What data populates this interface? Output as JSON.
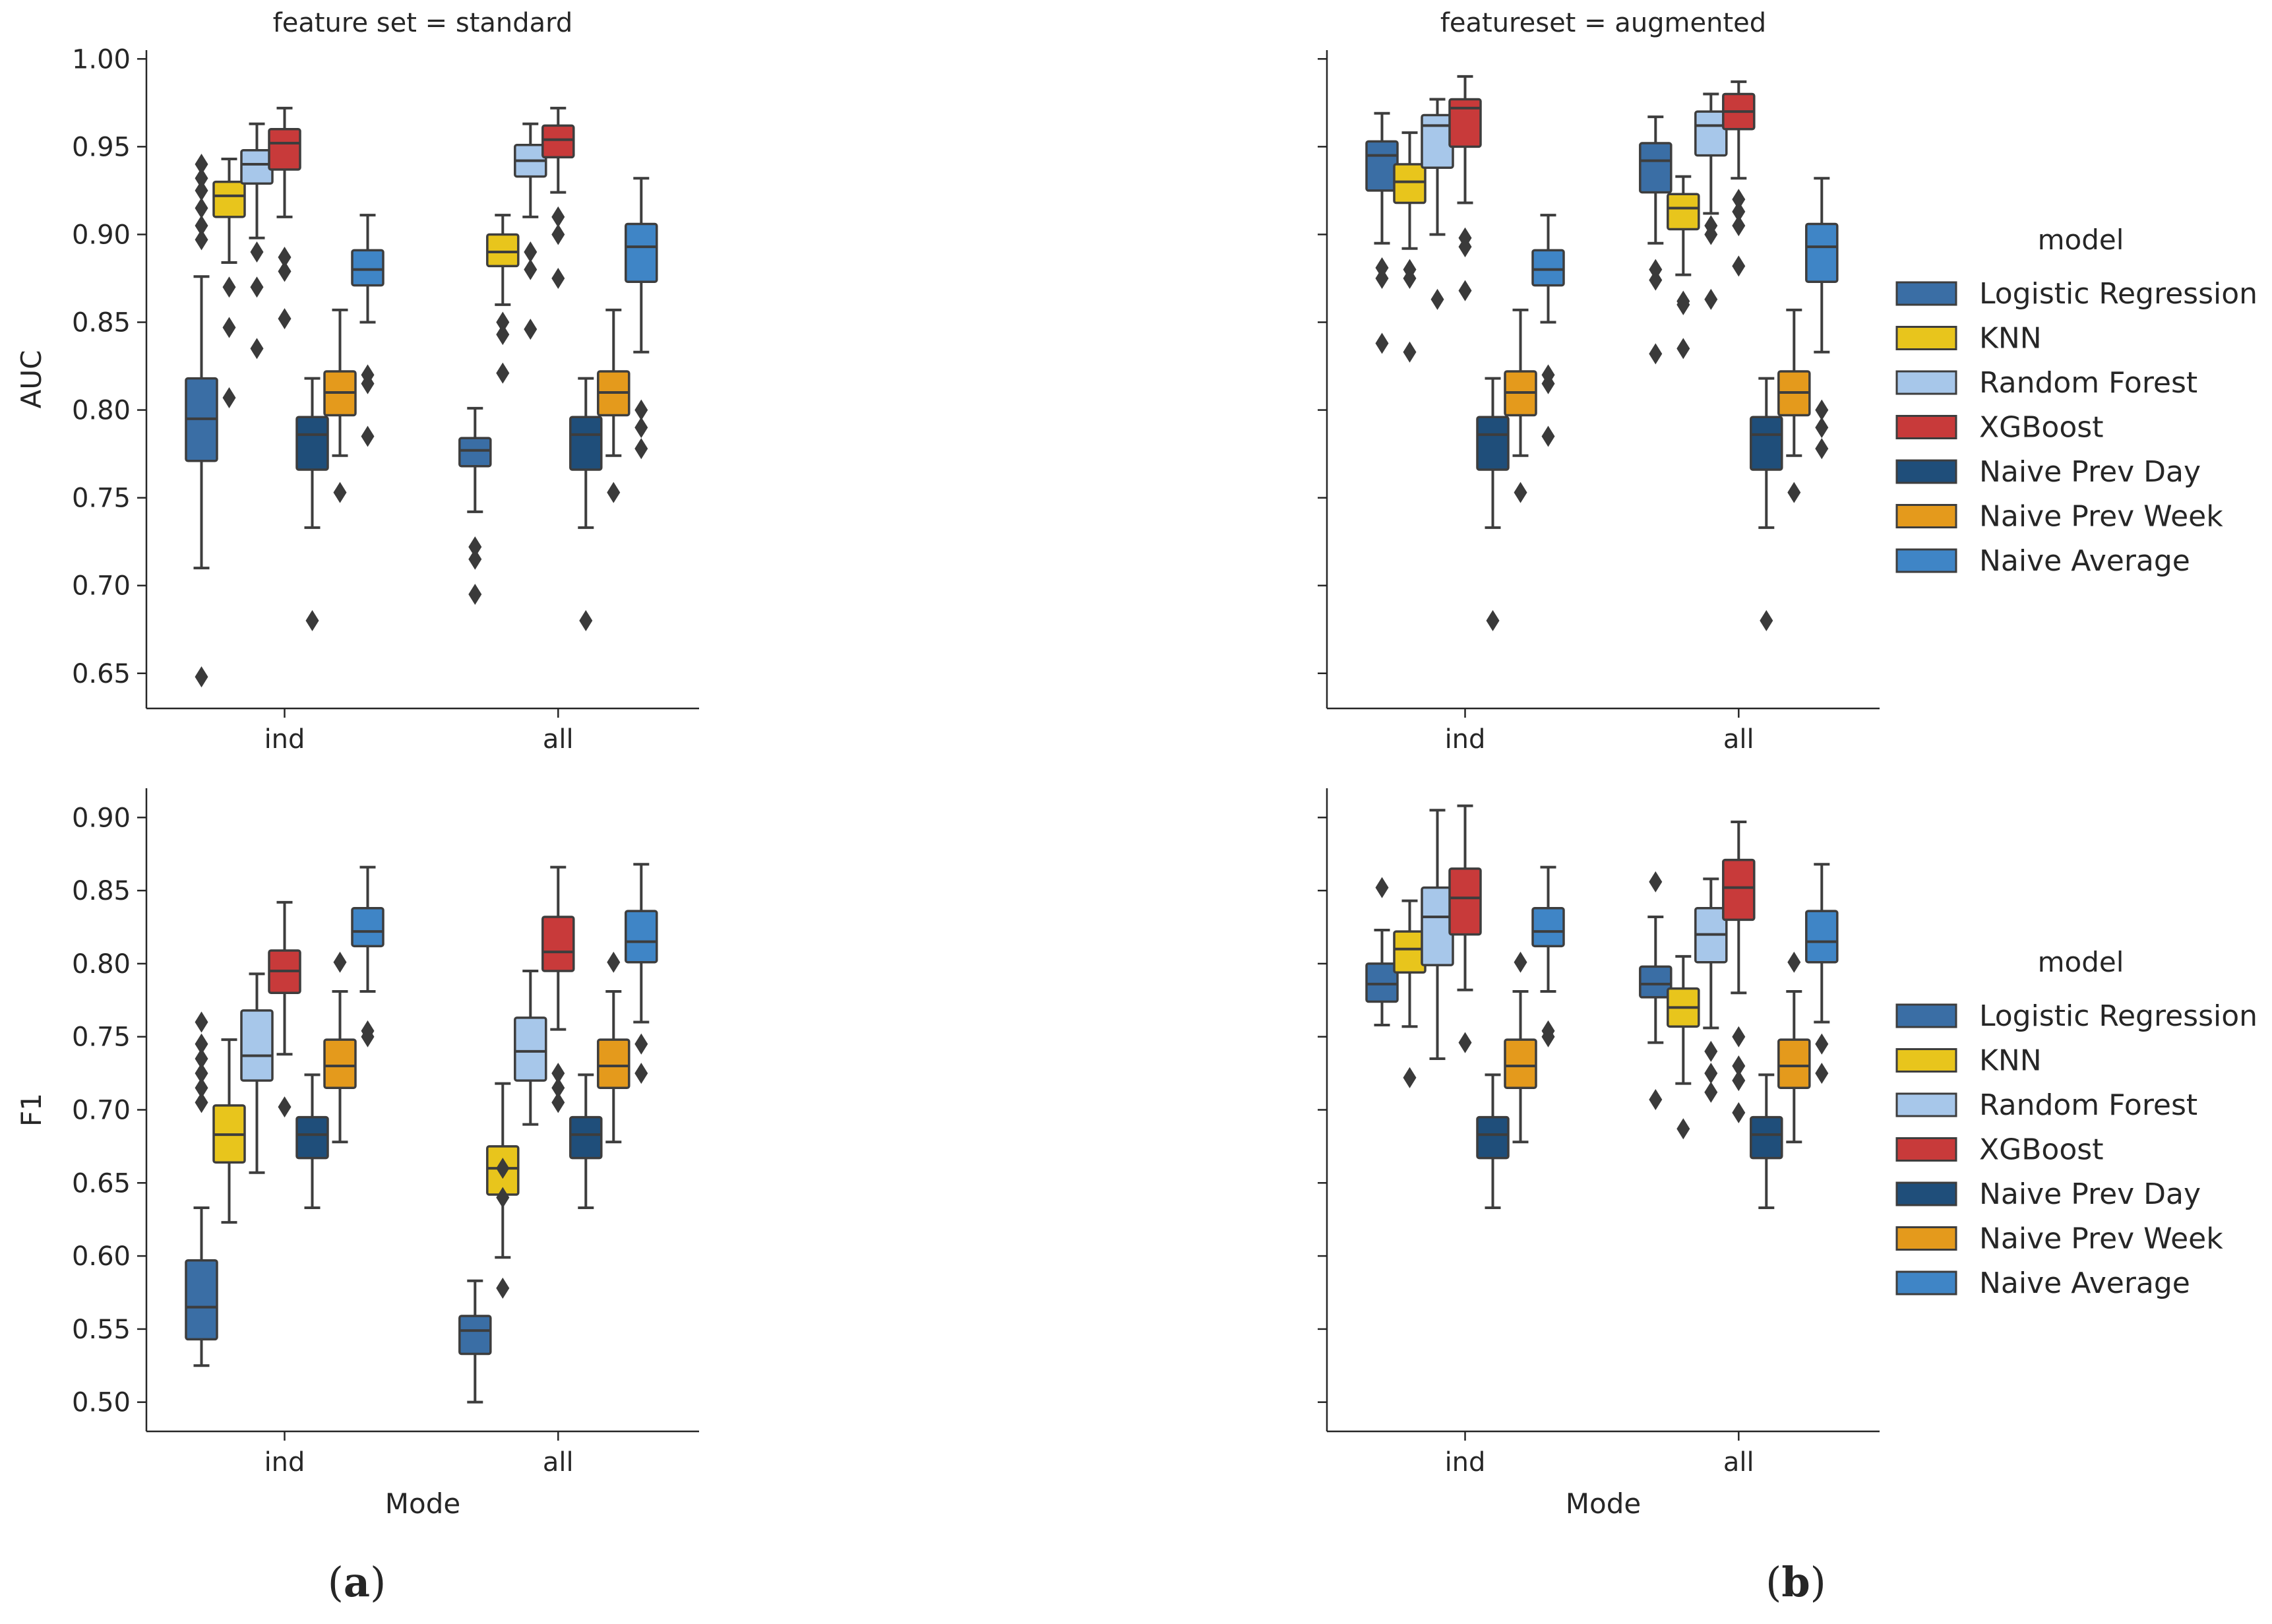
{
  "figure": {
    "panel_labels": [
      {
        "open": "(",
        "letter": "a",
        "close": ")"
      },
      {
        "open": "(",
        "letter": "b",
        "close": ")"
      }
    ]
  },
  "legends": [
    {
      "title": "model",
      "entries": [
        "Logistic Regression",
        "KNN",
        "Random Forest",
        "XGBoost",
        "Naive Prev Day",
        "Naive Prev Week",
        "Naive Average"
      ]
    },
    {
      "title": "model",
      "entries": [
        "Logistic Regression",
        "KNN",
        "Random Forest",
        "XGBoost",
        "Naive Prev Day",
        "Naive Prev Week",
        "Naive Average"
      ]
    }
  ],
  "colors": {
    "Logistic Regression": "#3a6ea5",
    "KNN": "#e8c51c",
    "Random Forest": "#a7c7ea",
    "XGBoost": "#c83a3a",
    "Naive Prev Day": "#1f4e7a",
    "Naive Prev Week": "#e49a1c",
    "Naive Average": "#3f85c6"
  },
  "chart_data": [
    {
      "type": "boxplot",
      "title": "feature set = standard",
      "xlabel": "",
      "ylabel": "AUC",
      "ylim": [
        0.63,
        1.005
      ],
      "yticks": [
        "0.65",
        "0.70",
        "0.75",
        "0.80",
        "0.85",
        "0.90",
        "0.95",
        "1.00"
      ],
      "categories": [
        "ind",
        "all"
      ],
      "groups": [
        {
          "mode": "ind",
          "boxes": [
            {
              "model": "Logistic Regression",
              "whislo": 0.71,
              "q1": 0.771,
              "med": 0.795,
              "q3": 0.818,
              "whishi": 0.876,
              "fliers": [
                0.648,
                0.897,
                0.905,
                0.915,
                0.925,
                0.932,
                0.94
              ]
            },
            {
              "model": "KNN",
              "whislo": 0.884,
              "q1": 0.91,
              "med": 0.922,
              "q3": 0.93,
              "whishi": 0.943,
              "fliers": [
                0.807,
                0.847,
                0.87
              ]
            },
            {
              "model": "Random Forest",
              "whislo": 0.898,
              "q1": 0.929,
              "med": 0.94,
              "q3": 0.948,
              "whishi": 0.963,
              "fliers": [
                0.835,
                0.87,
                0.89
              ]
            },
            {
              "model": "XGBoost",
              "whislo": 0.91,
              "q1": 0.937,
              "med": 0.952,
              "q3": 0.96,
              "whishi": 0.972,
              "fliers": [
                0.852,
                0.879,
                0.887
              ]
            },
            {
              "model": "Naive Prev Day",
              "whislo": 0.733,
              "q1": 0.766,
              "med": 0.786,
              "q3": 0.796,
              "whishi": 0.818,
              "fliers": [
                0.68
              ]
            },
            {
              "model": "Naive Prev Week",
              "whislo": 0.774,
              "q1": 0.797,
              "med": 0.81,
              "q3": 0.822,
              "whishi": 0.857,
              "fliers": [
                0.753
              ]
            },
            {
              "model": "Naive Average",
              "whislo": 0.85,
              "q1": 0.871,
              "med": 0.88,
              "q3": 0.891,
              "whishi": 0.911,
              "fliers": [
                0.785,
                0.815,
                0.82
              ]
            }
          ]
        },
        {
          "mode": "all",
          "boxes": [
            {
              "model": "Logistic Regression",
              "whislo": 0.742,
              "q1": 0.768,
              "med": 0.777,
              "q3": 0.784,
              "whishi": 0.801,
              "fliers": [
                0.695,
                0.715,
                0.722
              ]
            },
            {
              "model": "KNN",
              "whislo": 0.86,
              "q1": 0.882,
              "med": 0.89,
              "q3": 0.9,
              "whishi": 0.911,
              "fliers": [
                0.821,
                0.843,
                0.85
              ]
            },
            {
              "model": "Random Forest",
              "whislo": 0.91,
              "q1": 0.933,
              "med": 0.942,
              "q3": 0.951,
              "whishi": 0.963,
              "fliers": [
                0.846,
                0.88,
                0.89
              ]
            },
            {
              "model": "XGBoost",
              "whislo": 0.924,
              "q1": 0.944,
              "med": 0.954,
              "q3": 0.962,
              "whishi": 0.972,
              "fliers": [
                0.875,
                0.9,
                0.91
              ]
            },
            {
              "model": "Naive Prev Day",
              "whislo": 0.733,
              "q1": 0.766,
              "med": 0.786,
              "q3": 0.796,
              "whishi": 0.818,
              "fliers": [
                0.68
              ]
            },
            {
              "model": "Naive Prev Week",
              "whislo": 0.774,
              "q1": 0.797,
              "med": 0.81,
              "q3": 0.822,
              "whishi": 0.857,
              "fliers": [
                0.753
              ]
            },
            {
              "model": "Naive Average",
              "whislo": 0.833,
              "q1": 0.873,
              "med": 0.893,
              "q3": 0.906,
              "whishi": 0.932,
              "fliers": [
                0.778,
                0.79,
                0.8
              ]
            }
          ]
        }
      ]
    },
    {
      "type": "boxplot",
      "title": "featureset = augmented",
      "xlabel": "",
      "ylabel": "",
      "ylim": [
        0.63,
        1.005
      ],
      "yticks": [
        "0.65",
        "0.70",
        "0.75",
        "0.80",
        "0.85",
        "0.90",
        "0.95",
        "1.00"
      ],
      "show_ytick_labels": false,
      "categories": [
        "ind",
        "all"
      ],
      "groups": [
        {
          "mode": "ind",
          "boxes": [
            {
              "model": "Logistic Regression",
              "whislo": 0.895,
              "q1": 0.925,
              "med": 0.945,
              "q3": 0.953,
              "whishi": 0.969,
              "fliers": [
                0.838,
                0.875,
                0.881
              ]
            },
            {
              "model": "KNN",
              "whislo": 0.892,
              "q1": 0.918,
              "med": 0.93,
              "q3": 0.94,
              "whishi": 0.958,
              "fliers": [
                0.833,
                0.875,
                0.88
              ]
            },
            {
              "model": "Random Forest",
              "whislo": 0.9,
              "q1": 0.938,
              "med": 0.962,
              "q3": 0.968,
              "whishi": 0.977,
              "fliers": [
                0.863
              ]
            },
            {
              "model": "XGBoost",
              "whislo": 0.918,
              "q1": 0.95,
              "med": 0.972,
              "q3": 0.977,
              "whishi": 0.99,
              "fliers": [
                0.868,
                0.893,
                0.898
              ]
            },
            {
              "model": "Naive Prev Day",
              "whislo": 0.733,
              "q1": 0.766,
              "med": 0.786,
              "q3": 0.796,
              "whishi": 0.818,
              "fliers": [
                0.68
              ]
            },
            {
              "model": "Naive Prev Week",
              "whislo": 0.774,
              "q1": 0.797,
              "med": 0.81,
              "q3": 0.822,
              "whishi": 0.857,
              "fliers": [
                0.753
              ]
            },
            {
              "model": "Naive Average",
              "whislo": 0.85,
              "q1": 0.871,
              "med": 0.88,
              "q3": 0.891,
              "whishi": 0.911,
              "fliers": [
                0.785,
                0.815,
                0.82
              ]
            }
          ]
        },
        {
          "mode": "all",
          "boxes": [
            {
              "model": "Logistic Regression",
              "whislo": 0.895,
              "q1": 0.924,
              "med": 0.942,
              "q3": 0.952,
              "whishi": 0.967,
              "fliers": [
                0.832,
                0.874,
                0.88
              ]
            },
            {
              "model": "KNN",
              "whislo": 0.877,
              "q1": 0.903,
              "med": 0.915,
              "q3": 0.923,
              "whishi": 0.933,
              "fliers": [
                0.835,
                0.86,
                0.862
              ]
            },
            {
              "model": "Random Forest",
              "whislo": 0.912,
              "q1": 0.945,
              "med": 0.962,
              "q3": 0.97,
              "whishi": 0.98,
              "fliers": [
                0.863,
                0.9,
                0.905
              ]
            },
            {
              "model": "XGBoost",
              "whislo": 0.932,
              "q1": 0.96,
              "med": 0.97,
              "q3": 0.98,
              "whishi": 0.987,
              "fliers": [
                0.882,
                0.905,
                0.913,
                0.92
              ]
            },
            {
              "model": "Naive Prev Day",
              "whislo": 0.733,
              "q1": 0.766,
              "med": 0.786,
              "q3": 0.796,
              "whishi": 0.818,
              "fliers": [
                0.68
              ]
            },
            {
              "model": "Naive Prev Week",
              "whislo": 0.774,
              "q1": 0.797,
              "med": 0.81,
              "q3": 0.822,
              "whishi": 0.857,
              "fliers": [
                0.753
              ]
            },
            {
              "model": "Naive Average",
              "whislo": 0.833,
              "q1": 0.873,
              "med": 0.893,
              "q3": 0.906,
              "whishi": 0.932,
              "fliers": [
                0.778,
                0.79,
                0.8
              ]
            }
          ]
        }
      ]
    },
    {
      "type": "boxplot",
      "title": "",
      "xlabel": "Mode",
      "ylabel": "F1",
      "ylim": [
        0.48,
        0.92
      ],
      "yticks": [
        "0.50",
        "0.55",
        "0.60",
        "0.65",
        "0.70",
        "0.75",
        "0.80",
        "0.85",
        "0.90"
      ],
      "categories": [
        "ind",
        "all"
      ],
      "groups": [
        {
          "mode": "ind",
          "boxes": [
            {
              "model": "Logistic Regression",
              "whislo": 0.525,
              "q1": 0.543,
              "med": 0.565,
              "q3": 0.597,
              "whishi": 0.633,
              "fliers": [
                0.705,
                0.715,
                0.725,
                0.735,
                0.745,
                0.76
              ]
            },
            {
              "model": "KNN",
              "whislo": 0.623,
              "q1": 0.664,
              "med": 0.683,
              "q3": 0.703,
              "whishi": 0.748,
              "fliers": []
            },
            {
              "model": "Random Forest",
              "whislo": 0.657,
              "q1": 0.72,
              "med": 0.737,
              "q3": 0.768,
              "whishi": 0.793,
              "fliers": []
            },
            {
              "model": "XGBoost",
              "whislo": 0.738,
              "q1": 0.78,
              "med": 0.795,
              "q3": 0.809,
              "whishi": 0.842,
              "fliers": [
                0.702
              ]
            },
            {
              "model": "Naive Prev Day",
              "whislo": 0.633,
              "q1": 0.667,
              "med": 0.683,
              "q3": 0.695,
              "whishi": 0.724,
              "fliers": []
            },
            {
              "model": "Naive Prev Week",
              "whislo": 0.678,
              "q1": 0.715,
              "med": 0.73,
              "q3": 0.748,
              "whishi": 0.781,
              "fliers": [
                0.801
              ]
            },
            {
              "model": "Naive Average",
              "whislo": 0.781,
              "q1": 0.812,
              "med": 0.822,
              "q3": 0.838,
              "whishi": 0.866,
              "fliers": [
                0.75,
                0.754
              ]
            }
          ]
        },
        {
          "mode": "all",
          "boxes": [
            {
              "model": "Logistic Regression",
              "whislo": 0.5,
              "q1": 0.533,
              "med": 0.549,
              "q3": 0.559,
              "whishi": 0.583,
              "fliers": []
            },
            {
              "model": "KNN",
              "whislo": 0.599,
              "q1": 0.642,
              "med": 0.66,
              "q3": 0.675,
              "whishi": 0.718,
              "fliers": [
                0.578,
                0.64,
                0.66
              ]
            },
            {
              "model": "Random Forest",
              "whislo": 0.69,
              "q1": 0.72,
              "med": 0.74,
              "q3": 0.763,
              "whishi": 0.795,
              "fliers": []
            },
            {
              "model": "XGBoost",
              "whislo": 0.755,
              "q1": 0.795,
              "med": 0.808,
              "q3": 0.832,
              "whishi": 0.866,
              "fliers": [
                0.705,
                0.715,
                0.725
              ]
            },
            {
              "model": "Naive Prev Day",
              "whislo": 0.633,
              "q1": 0.667,
              "med": 0.683,
              "q3": 0.695,
              "whishi": 0.724,
              "fliers": []
            },
            {
              "model": "Naive Prev Week",
              "whislo": 0.678,
              "q1": 0.715,
              "med": 0.73,
              "q3": 0.748,
              "whishi": 0.781,
              "fliers": [
                0.801
              ]
            },
            {
              "model": "Naive Average",
              "whislo": 0.76,
              "q1": 0.801,
              "med": 0.815,
              "q3": 0.836,
              "whishi": 0.868,
              "fliers": [
                0.725,
                0.745
              ]
            }
          ]
        }
      ]
    },
    {
      "type": "boxplot",
      "title": "",
      "xlabel": "Mode",
      "ylabel": "",
      "ylim": [
        0.48,
        0.92
      ],
      "yticks": [
        "0.50",
        "0.55",
        "0.60",
        "0.65",
        "0.70",
        "0.75",
        "0.80",
        "0.85",
        "0.90"
      ],
      "show_ytick_labels": false,
      "categories": [
        "ind",
        "all"
      ],
      "groups": [
        {
          "mode": "ind",
          "boxes": [
            {
              "model": "Logistic Regression",
              "whislo": 0.758,
              "q1": 0.774,
              "med": 0.786,
              "q3": 0.8,
              "whishi": 0.823,
              "fliers": [
                0.852
              ]
            },
            {
              "model": "KNN",
              "whislo": 0.757,
              "q1": 0.794,
              "med": 0.81,
              "q3": 0.822,
              "whishi": 0.843,
              "fliers": [
                0.722
              ]
            },
            {
              "model": "Random Forest",
              "whislo": 0.735,
              "q1": 0.799,
              "med": 0.832,
              "q3": 0.852,
              "whishi": 0.905,
              "fliers": []
            },
            {
              "model": "XGBoost",
              "whislo": 0.782,
              "q1": 0.82,
              "med": 0.845,
              "q3": 0.865,
              "whishi": 0.908,
              "fliers": [
                0.746
              ]
            },
            {
              "model": "Naive Prev Day",
              "whislo": 0.633,
              "q1": 0.667,
              "med": 0.683,
              "q3": 0.695,
              "whishi": 0.724,
              "fliers": []
            },
            {
              "model": "Naive Prev Week",
              "whislo": 0.678,
              "q1": 0.715,
              "med": 0.73,
              "q3": 0.748,
              "whishi": 0.781,
              "fliers": [
                0.801
              ]
            },
            {
              "model": "Naive Average",
              "whislo": 0.781,
              "q1": 0.812,
              "med": 0.822,
              "q3": 0.838,
              "whishi": 0.866,
              "fliers": [
                0.75,
                0.754
              ]
            }
          ]
        },
        {
          "mode": "all",
          "boxes": [
            {
              "model": "Logistic Regression",
              "whislo": 0.746,
              "q1": 0.777,
              "med": 0.786,
              "q3": 0.798,
              "whishi": 0.832,
              "fliers": [
                0.707,
                0.856
              ]
            },
            {
              "model": "KNN",
              "whislo": 0.718,
              "q1": 0.757,
              "med": 0.77,
              "q3": 0.783,
              "whishi": 0.805,
              "fliers": [
                0.687
              ]
            },
            {
              "model": "Random Forest",
              "whislo": 0.756,
              "q1": 0.801,
              "med": 0.82,
              "q3": 0.838,
              "whishi": 0.858,
              "fliers": [
                0.712,
                0.725,
                0.74
              ]
            },
            {
              "model": "XGBoost",
              "whislo": 0.78,
              "q1": 0.83,
              "med": 0.852,
              "q3": 0.871,
              "whishi": 0.897,
              "fliers": [
                0.698,
                0.72,
                0.73,
                0.75
              ]
            },
            {
              "model": "Naive Prev Day",
              "whislo": 0.633,
              "q1": 0.667,
              "med": 0.683,
              "q3": 0.695,
              "whishi": 0.724,
              "fliers": []
            },
            {
              "model": "Naive Prev Week",
              "whislo": 0.678,
              "q1": 0.715,
              "med": 0.73,
              "q3": 0.748,
              "whishi": 0.781,
              "fliers": [
                0.801
              ]
            },
            {
              "model": "Naive Average",
              "whislo": 0.76,
              "q1": 0.801,
              "med": 0.815,
              "q3": 0.836,
              "whishi": 0.868,
              "fliers": [
                0.725,
                0.745
              ]
            }
          ]
        }
      ]
    }
  ]
}
